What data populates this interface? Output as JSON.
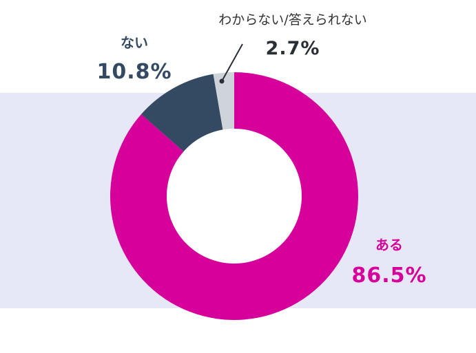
{
  "chart_data": {
    "type": "pie",
    "style": "donut",
    "title": "",
    "categories": [
      "ある",
      "ない",
      "わからない/答えられない"
    ],
    "values": [
      86.5,
      10.8,
      2.7
    ],
    "unit": "%",
    "colors": [
      "#d6009a",
      "#344a62",
      "#cfd4da"
    ],
    "start_angle": "12 o'clock, clockwise",
    "background_band_color": "#e7e8f7"
  },
  "labels": {
    "yes": {
      "category": "ある",
      "value": "86.5%"
    },
    "no": {
      "category": "ない",
      "value": "10.8%"
    },
    "unknown": {
      "category": "わからない/答えられない",
      "value": "2.7%"
    }
  }
}
